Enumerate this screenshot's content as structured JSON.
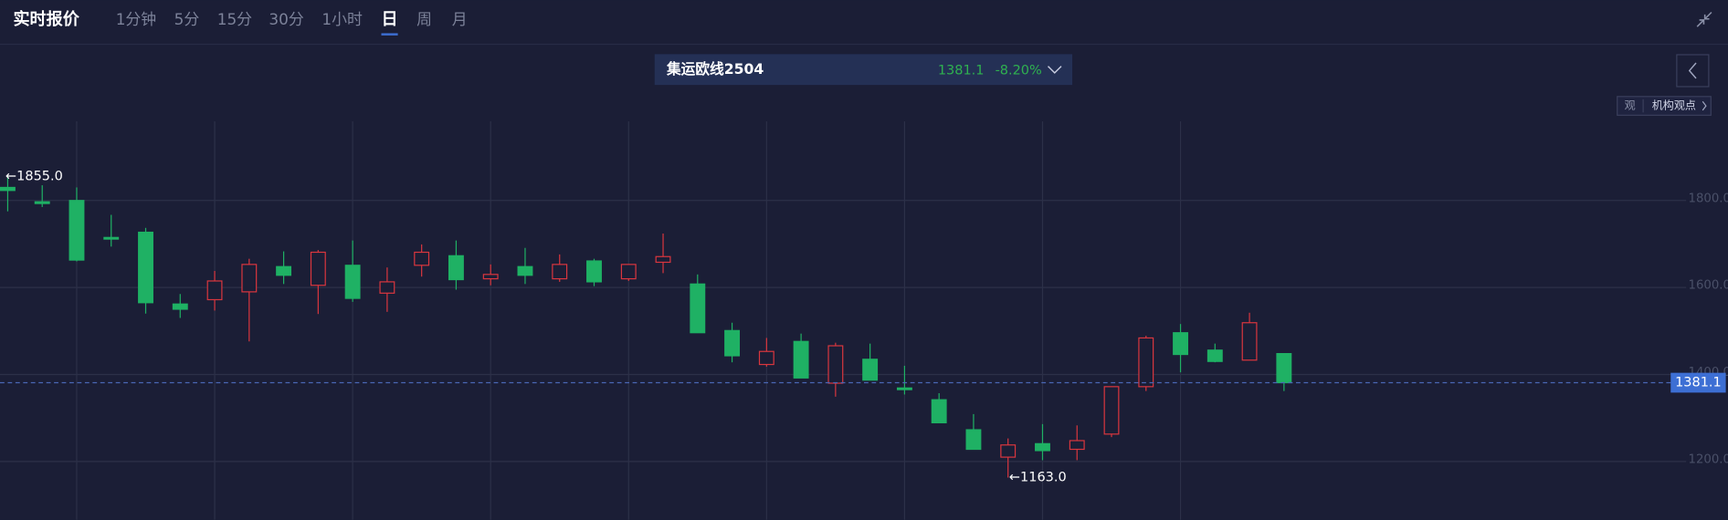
{
  "header": {
    "title": "实时报价",
    "tabs": [
      "1分钟",
      "5分",
      "15分",
      "30分",
      "1小时",
      "日",
      "周",
      "月"
    ],
    "active_tab": "日"
  },
  "symbol": {
    "name": "集运欧线2504",
    "price": "1381.1",
    "change": "-8.20%"
  },
  "opinion_button": {
    "icon": "观",
    "label": "机构观点"
  },
  "chart_data": {
    "type": "candlestick",
    "categories": [
      null,
      null,
      null,
      null,
      null,
      null,
      null,
      null,
      null,
      null,
      null,
      null,
      null,
      null,
      null,
      null,
      null,
      null,
      null,
      null,
      null,
      null,
      null,
      null,
      null,
      null,
      null,
      null,
      null,
      null,
      null,
      null,
      null,
      null,
      null,
      null,
      null,
      null
    ],
    "open": [
      1830,
      1797,
      1800,
      1715,
      1727,
      1562,
      1572,
      1590,
      1648,
      1605,
      1651,
      1587,
      1651,
      1673,
      1620,
      1648,
      1620,
      1661,
      1620,
      1658,
      1608,
      1501,
      1423,
      1476,
      1380,
      1435,
      1369,
      1342,
      1273,
      1210,
      1241,
      1228,
      1263,
      1372,
      1496,
      1456,
      1433,
      1448
    ],
    "high": [
      1855,
      1835,
      1830,
      1767,
      1737,
      1585,
      1638,
      1666,
      1683,
      1686,
      1708,
      1646,
      1699,
      1708,
      1653,
      1691,
      1676,
      1666,
      1653,
      1724,
      1630,
      1519,
      1484,
      1494,
      1473,
      1471,
      1420,
      1357,
      1309,
      1253,
      1286,
      1283,
      1372,
      1489,
      1516,
      1471,
      1542,
      1448
    ],
    "low": [
      1775,
      1785,
      1660,
      1694,
      1540,
      1530,
      1547,
      1476,
      1608,
      1539,
      1567,
      1544,
      1625,
      1595,
      1605,
      1608,
      1613,
      1603,
      1615,
      1633,
      1496,
      1428,
      1418,
      1392,
      1349,
      1387,
      1354,
      1289,
      1228,
      1163,
      1203,
      1203,
      1256,
      1362,
      1405,
      1428,
      1433,
      1362
    ],
    "close": [
      1823,
      1793,
      1663,
      1713,
      1565,
      1550,
      1615,
      1653,
      1628,
      1681,
      1575,
      1613,
      1681,
      1618,
      1630,
      1628,
      1653,
      1613,
      1653,
      1671,
      1496,
      1443,
      1453,
      1392,
      1466,
      1387,
      1367,
      1289,
      1228,
      1238,
      1225,
      1248,
      1372,
      1484,
      1446,
      1430,
      1519,
      1381.1
    ],
    "up_color": "#d9363e",
    "down_color": "#1fb164",
    "ylim": [
      1066,
      1982
    ],
    "yticks": [
      {
        "value": 1200,
        "label": "1200.0"
      },
      {
        "value": 1400,
        "label": "1400.0"
      },
      {
        "value": 1600,
        "label": "1600.0"
      },
      {
        "value": 1800,
        "label": "1800.0"
      }
    ],
    "grid": true,
    "last_price": 1381.1,
    "max_label": "←1855.0",
    "min_label": "←1163.0"
  }
}
